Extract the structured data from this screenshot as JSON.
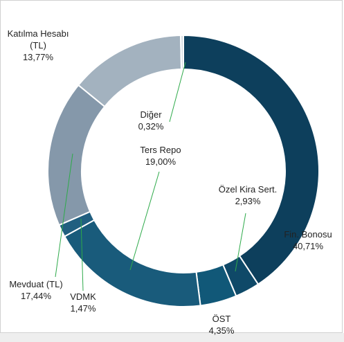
{
  "chart_data": {
    "type": "donut",
    "categories": [
      "Fin. Bonosu",
      "Özel Kira Sert.",
      "ÖST",
      "Ters Repo",
      "VDMK",
      "Mevduat (TL)",
      "Katılma Hesabı (TL)",
      "Diğer"
    ],
    "values": [
      40.71,
      2.93,
      4.35,
      19.0,
      1.47,
      17.44,
      13.77,
      0.32
    ],
    "value_labels": [
      "40,71%",
      "2,93%",
      "4,35%",
      "19,00%",
      "1,47%",
      "17,44%",
      "13,77%",
      "0,32%"
    ],
    "colors": [
      "#0d3f5c",
      "#0f4968",
      "#115878",
      "#195b7b",
      "#215f80",
      "#8598aa",
      "#a3b2bf",
      "#d4dbe1"
    ]
  }
}
